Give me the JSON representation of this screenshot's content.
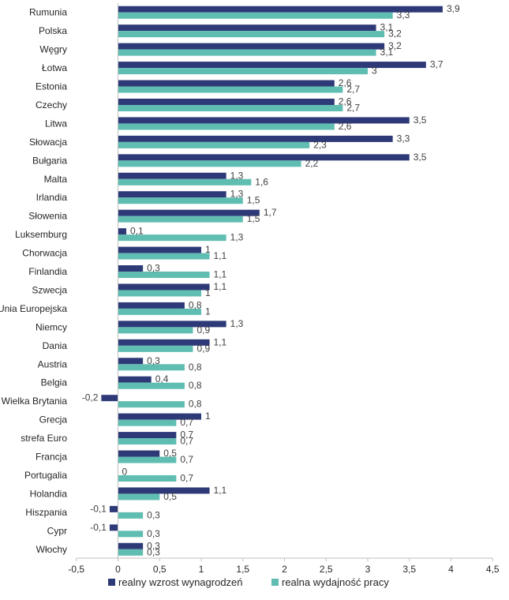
{
  "chart_data": {
    "type": "bar",
    "orientation": "horizontal",
    "categories": [
      "Rumunia",
      "Polska",
      "Węgry",
      "Łotwa",
      "Estonia",
      "Czechy",
      "Litwa",
      "Słowacja",
      "Bułgaria",
      "Malta",
      "Irlandia",
      "Słowenia",
      "Luksemburg",
      "Chorwacja",
      "Finlandia",
      "Szwecja",
      "Unia Europejska",
      "Niemcy",
      "Dania",
      "Austria",
      "Belgia",
      "Wielka Brytania",
      "Grecja",
      "strefa Euro",
      "Francja",
      "Portugalia",
      "Holandia",
      "Hiszpania",
      "Cypr",
      "Włochy"
    ],
    "series": [
      {
        "name": "realny wzrost wynagrodzeń",
        "color": "#2E3A78",
        "values": [
          3.9,
          3.1,
          3.2,
          3.7,
          2.6,
          2.6,
          3.5,
          3.3,
          3.5,
          1.3,
          1.3,
          1.7,
          0.1,
          1,
          0.3,
          1.1,
          0.8,
          1.3,
          1.1,
          0.3,
          0.4,
          -0.2,
          1,
          0.7,
          0.5,
          0,
          1.1,
          -0.1,
          -0.1,
          0.3
        ],
        "labels": [
          "3,9",
          "3,1",
          "3,2",
          "3,7",
          "2,6",
          "2,6",
          "3,5",
          "3,3",
          "3,5",
          "1,3",
          "1,3",
          "1,7",
          "0,1",
          "1",
          "0,3",
          "1,1",
          "0,8",
          "1,3",
          "1,1",
          "0,3",
          "0,4",
          "-0,2",
          "1",
          "0,7",
          "0,5",
          "0",
          "1,1",
          "-0,1",
          "-0,1",
          "0,3"
        ]
      },
      {
        "name": "realna wydajność pracy",
        "color": "#5FBDB1",
        "values": [
          3.3,
          3.2,
          3.1,
          3,
          2.7,
          2.7,
          2.6,
          2.3,
          2.2,
          1.6,
          1.5,
          1.5,
          1.3,
          1.1,
          1.1,
          1,
          1,
          0.9,
          0.9,
          0.8,
          0.8,
          0.8,
          0.7,
          0.7,
          0.7,
          0.7,
          0.5,
          0.3,
          0.3,
          0.3
        ],
        "labels": [
          "3,3",
          "3,2",
          "3,1",
          "3",
          "2,7",
          "2,7",
          "2,6",
          "2,3",
          "2,2",
          "1,6",
          "1,5",
          "1,5",
          "1,3",
          "1,1",
          "1,1",
          "1",
          "1",
          "0,9",
          "0,9",
          "0,8",
          "0,8",
          "0,8",
          "0,7",
          "0,7",
          "0,7",
          "0,7",
          "0,5",
          "0,3",
          "0,3",
          "0,3"
        ]
      }
    ],
    "xlim": [
      -0.5,
      4.5
    ],
    "xticks": [
      -0.5,
      0,
      0.5,
      1,
      1.5,
      2,
      2.5,
      3,
      3.5,
      4,
      4.5
    ],
    "xtick_labels": [
      "-0,5",
      "0",
      "0,5",
      "1",
      "1,5",
      "2",
      "2,5",
      "3",
      "3,5",
      "4",
      "4,5"
    ],
    "grid": false,
    "legend_position": "bottom"
  }
}
